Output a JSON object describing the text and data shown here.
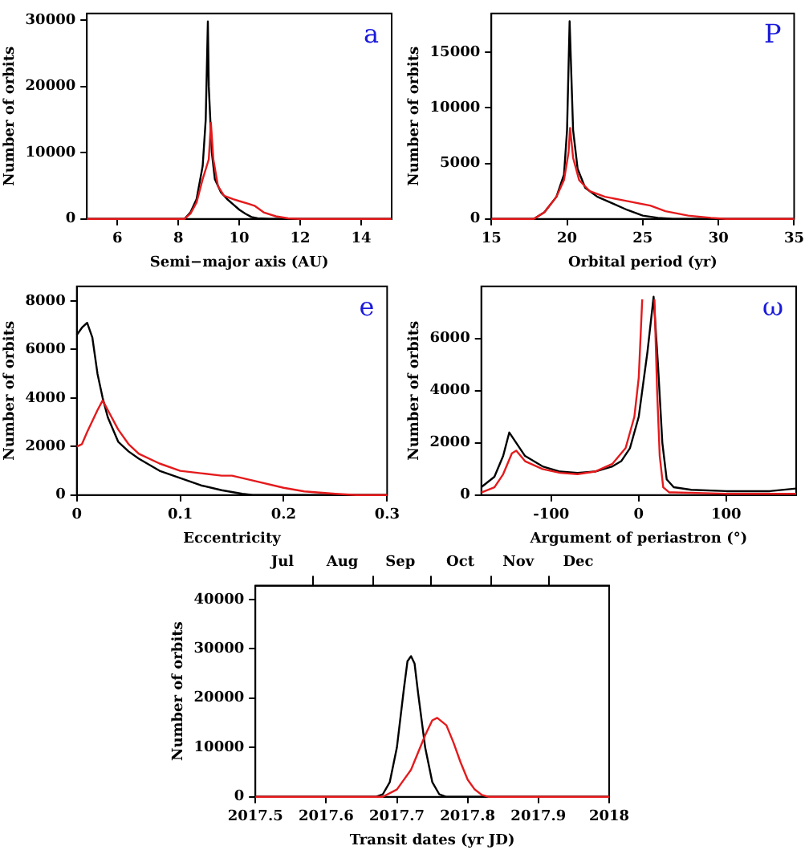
{
  "chart_data": [
    {
      "type": "line",
      "xlabel": "Semi−major axis (AU)",
      "ylabel": "Number of orbits",
      "annotations": [
        "a"
      ],
      "marker": "none",
      "xlim": [
        5,
        15
      ],
      "xticks": [
        6,
        8,
        10,
        12,
        14
      ],
      "ylim": [
        0,
        31000
      ],
      "yticks": [
        0,
        10000,
        20000,
        30000
      ],
      "series": [
        {
          "color": "#000000",
          "x": [
            5,
            8.2,
            8.4,
            8.6,
            8.8,
            8.9,
            8.97,
            9.0,
            9.1,
            9.2,
            9.4,
            9.6,
            9.8,
            10.0,
            10.2,
            10.4,
            10.6,
            11,
            15
          ],
          "values": [
            0,
            0,
            1000,
            3000,
            8000,
            15000,
            29800,
            20000,
            10000,
            6000,
            4000,
            3000,
            2200,
            1400,
            800,
            300,
            100,
            0,
            0
          ]
        },
        {
          "color": "#e41a1c",
          "x": [
            5,
            8.2,
            8.4,
            8.6,
            8.8,
            9.0,
            9.07,
            9.15,
            9.3,
            9.5,
            9.8,
            10.0,
            10.3,
            10.5,
            10.8,
            11.2,
            11.6,
            12,
            15
          ],
          "values": [
            0,
            0,
            800,
            2500,
            6000,
            9000,
            14500,
            9000,
            5000,
            3500,
            3000,
            2700,
            2300,
            2000,
            1000,
            400,
            100,
            0,
            0
          ]
        }
      ]
    },
    {
      "type": "line",
      "xlabel": "Orbital period (yr)",
      "ylabel": "Number of orbits",
      "annotations": [
        "P"
      ],
      "marker": "none",
      "xlim": [
        15,
        35
      ],
      "xticks": [
        15,
        20,
        25,
        30,
        35
      ],
      "ylim": [
        0,
        18500
      ],
      "yticks": [
        0,
        5000,
        10000,
        15000
      ],
      "series": [
        {
          "color": "#000000",
          "x": [
            15,
            17.8,
            18.5,
            19.3,
            19.8,
            20.0,
            20.17,
            20.4,
            20.7,
            21.2,
            22,
            23,
            24,
            25,
            26,
            27,
            35
          ],
          "values": [
            0,
            0,
            600,
            2000,
            4000,
            8000,
            17800,
            8000,
            4500,
            2800,
            2000,
            1400,
            800,
            300,
            100,
            0,
            0
          ]
        },
        {
          "color": "#e41a1c",
          "x": [
            15,
            17.8,
            18.5,
            19.3,
            19.8,
            20.1,
            20.2,
            20.4,
            20.8,
            21.5,
            22.5,
            24,
            25.5,
            26.5,
            28,
            29.5,
            30.5,
            35
          ],
          "values": [
            0,
            0,
            600,
            2000,
            3500,
            6000,
            8200,
            5500,
            3500,
            2500,
            2000,
            1600,
            1200,
            700,
            300,
            100,
            0,
            0
          ]
        }
      ]
    },
    {
      "type": "line",
      "xlabel": "Eccentricity",
      "ylabel": "Number of orbits",
      "annotations": [
        "e"
      ],
      "marker": "none",
      "xlim": [
        0,
        0.3
      ],
      "xticks": [
        0,
        0.1,
        0.2,
        0.3
      ],
      "ylim": [
        0,
        8600
      ],
      "yticks": [
        0,
        2000,
        4000,
        6000,
        8000
      ],
      "series": [
        {
          "color": "#000000",
          "x": [
            0,
            0.005,
            0.01,
            0.015,
            0.02,
            0.025,
            0.03,
            0.04,
            0.05,
            0.06,
            0.08,
            0.1,
            0.12,
            0.14,
            0.16,
            0.17,
            0.3
          ],
          "values": [
            6600,
            6900,
            7100,
            6500,
            5000,
            4000,
            3200,
            2200,
            1800,
            1500,
            1000,
            700,
            400,
            200,
            50,
            0,
            0
          ]
        },
        {
          "color": "#e41a1c",
          "x": [
            0,
            0.005,
            0.01,
            0.02,
            0.025,
            0.03,
            0.04,
            0.05,
            0.06,
            0.08,
            0.1,
            0.12,
            0.14,
            0.15,
            0.17,
            0.2,
            0.22,
            0.25,
            0.27,
            0.3
          ],
          "values": [
            2000,
            2100,
            2600,
            3500,
            3900,
            3500,
            2700,
            2100,
            1700,
            1300,
            1000,
            900,
            800,
            800,
            600,
            300,
            150,
            50,
            0,
            0
          ]
        }
      ]
    },
    {
      "type": "line",
      "xlabel": "Argument of periastron (°)",
      "ylabel": "Number of orbits",
      "annotations": [
        "ω"
      ],
      "marker": "none",
      "xlim": [
        -180,
        180
      ],
      "xticks": [
        -100,
        0,
        100
      ],
      "ylim": [
        0,
        8000
      ],
      "yticks": [
        0,
        2000,
        4000,
        6000
      ],
      "series": [
        {
          "color": "#000000",
          "x": [
            -180,
            -165,
            -155,
            -148,
            -140,
            -130,
            -110,
            -90,
            -70,
            -50,
            -30,
            -20,
            -10,
            0,
            10,
            17,
            22,
            27,
            32,
            40,
            60,
            100,
            150,
            180
          ],
          "values": [
            300,
            700,
            1500,
            2400,
            2000,
            1500,
            1100,
            900,
            850,
            900,
            1100,
            1300,
            1800,
            3000,
            5500,
            7600,
            5000,
            2000,
            600,
            300,
            200,
            150,
            150,
            250
          ]
        },
        {
          "color": "#e41a1c",
          "x": [
            -180,
            -165,
            -155,
            -145,
            -140,
            -130,
            -110,
            -90,
            -70,
            -50,
            -30,
            -15,
            -5,
            0,
            4,
            8,
            12,
            18,
            21,
            24,
            28,
            35,
            40,
            100,
            180
          ],
          "values": [
            100,
            300,
            800,
            1600,
            1700,
            1300,
            1000,
            850,
            800,
            900,
            1200,
            1800,
            3000,
            4500,
            7500,
            null,
            null,
            7500,
            4000,
            1500,
            300,
            100,
            100,
            50,
            50
          ]
        }
      ]
    },
    {
      "type": "line",
      "xlabel": "Transit dates (yr JD)",
      "ylabel": "Number of orbits",
      "marker": "none",
      "xlim": [
        2017.5,
        2018
      ],
      "xticks": [
        2017.5,
        2017.6,
        2017.7,
        2017.8,
        2017.9,
        2018
      ],
      "ylim": [
        0,
        42800
      ],
      "yticks": [
        0,
        10000,
        20000,
        30000,
        40000
      ],
      "x2lim": [
        "2017-07-02",
        "2018-01-01"
      ],
      "x2ticks": [
        {
          "value": "2017-07-16",
          "label": "Jul"
        },
        {
          "value": "2017-08-01",
          "label": null
        },
        {
          "value": "2017-08-16",
          "label": "Aug"
        },
        {
          "value": "2017-09-01",
          "label": null
        },
        {
          "value": "2017-09-15",
          "label": "Sep"
        },
        {
          "value": "2017-10-01",
          "label": null
        },
        {
          "value": "2017-10-16",
          "label": "Oct"
        },
        {
          "value": "2017-11-01",
          "label": null
        },
        {
          "value": "2017-11-15",
          "label": "Nov"
        },
        {
          "value": "2017-12-01",
          "label": null
        },
        {
          "value": "2017-12-16",
          "label": "Dec"
        }
      ],
      "series": [
        {
          "color": "#000000",
          "x": [
            2017.5,
            2017.67,
            2017.68,
            2017.69,
            2017.7,
            2017.71,
            2017.715,
            2017.72,
            2017.725,
            2017.73,
            2017.74,
            2017.75,
            2017.76,
            2017.77,
            2018
          ],
          "values": [
            0,
            0,
            500,
            3000,
            10000,
            22000,
            27500,
            28500,
            27000,
            21000,
            10000,
            3000,
            500,
            0,
            0
          ]
        },
        {
          "color": "#e41a1c",
          "x": [
            2017.5,
            2017.68,
            2017.7,
            2017.72,
            2017.73,
            2017.74,
            2017.75,
            2017.757,
            2017.77,
            2017.78,
            2017.79,
            2017.8,
            2017.81,
            2017.82,
            2017.83,
            2018
          ],
          "values": [
            0,
            0,
            1500,
            5500,
            9000,
            12500,
            15500,
            16000,
            14500,
            11000,
            7000,
            3500,
            1500,
            400,
            0,
            0
          ]
        }
      ]
    }
  ]
}
